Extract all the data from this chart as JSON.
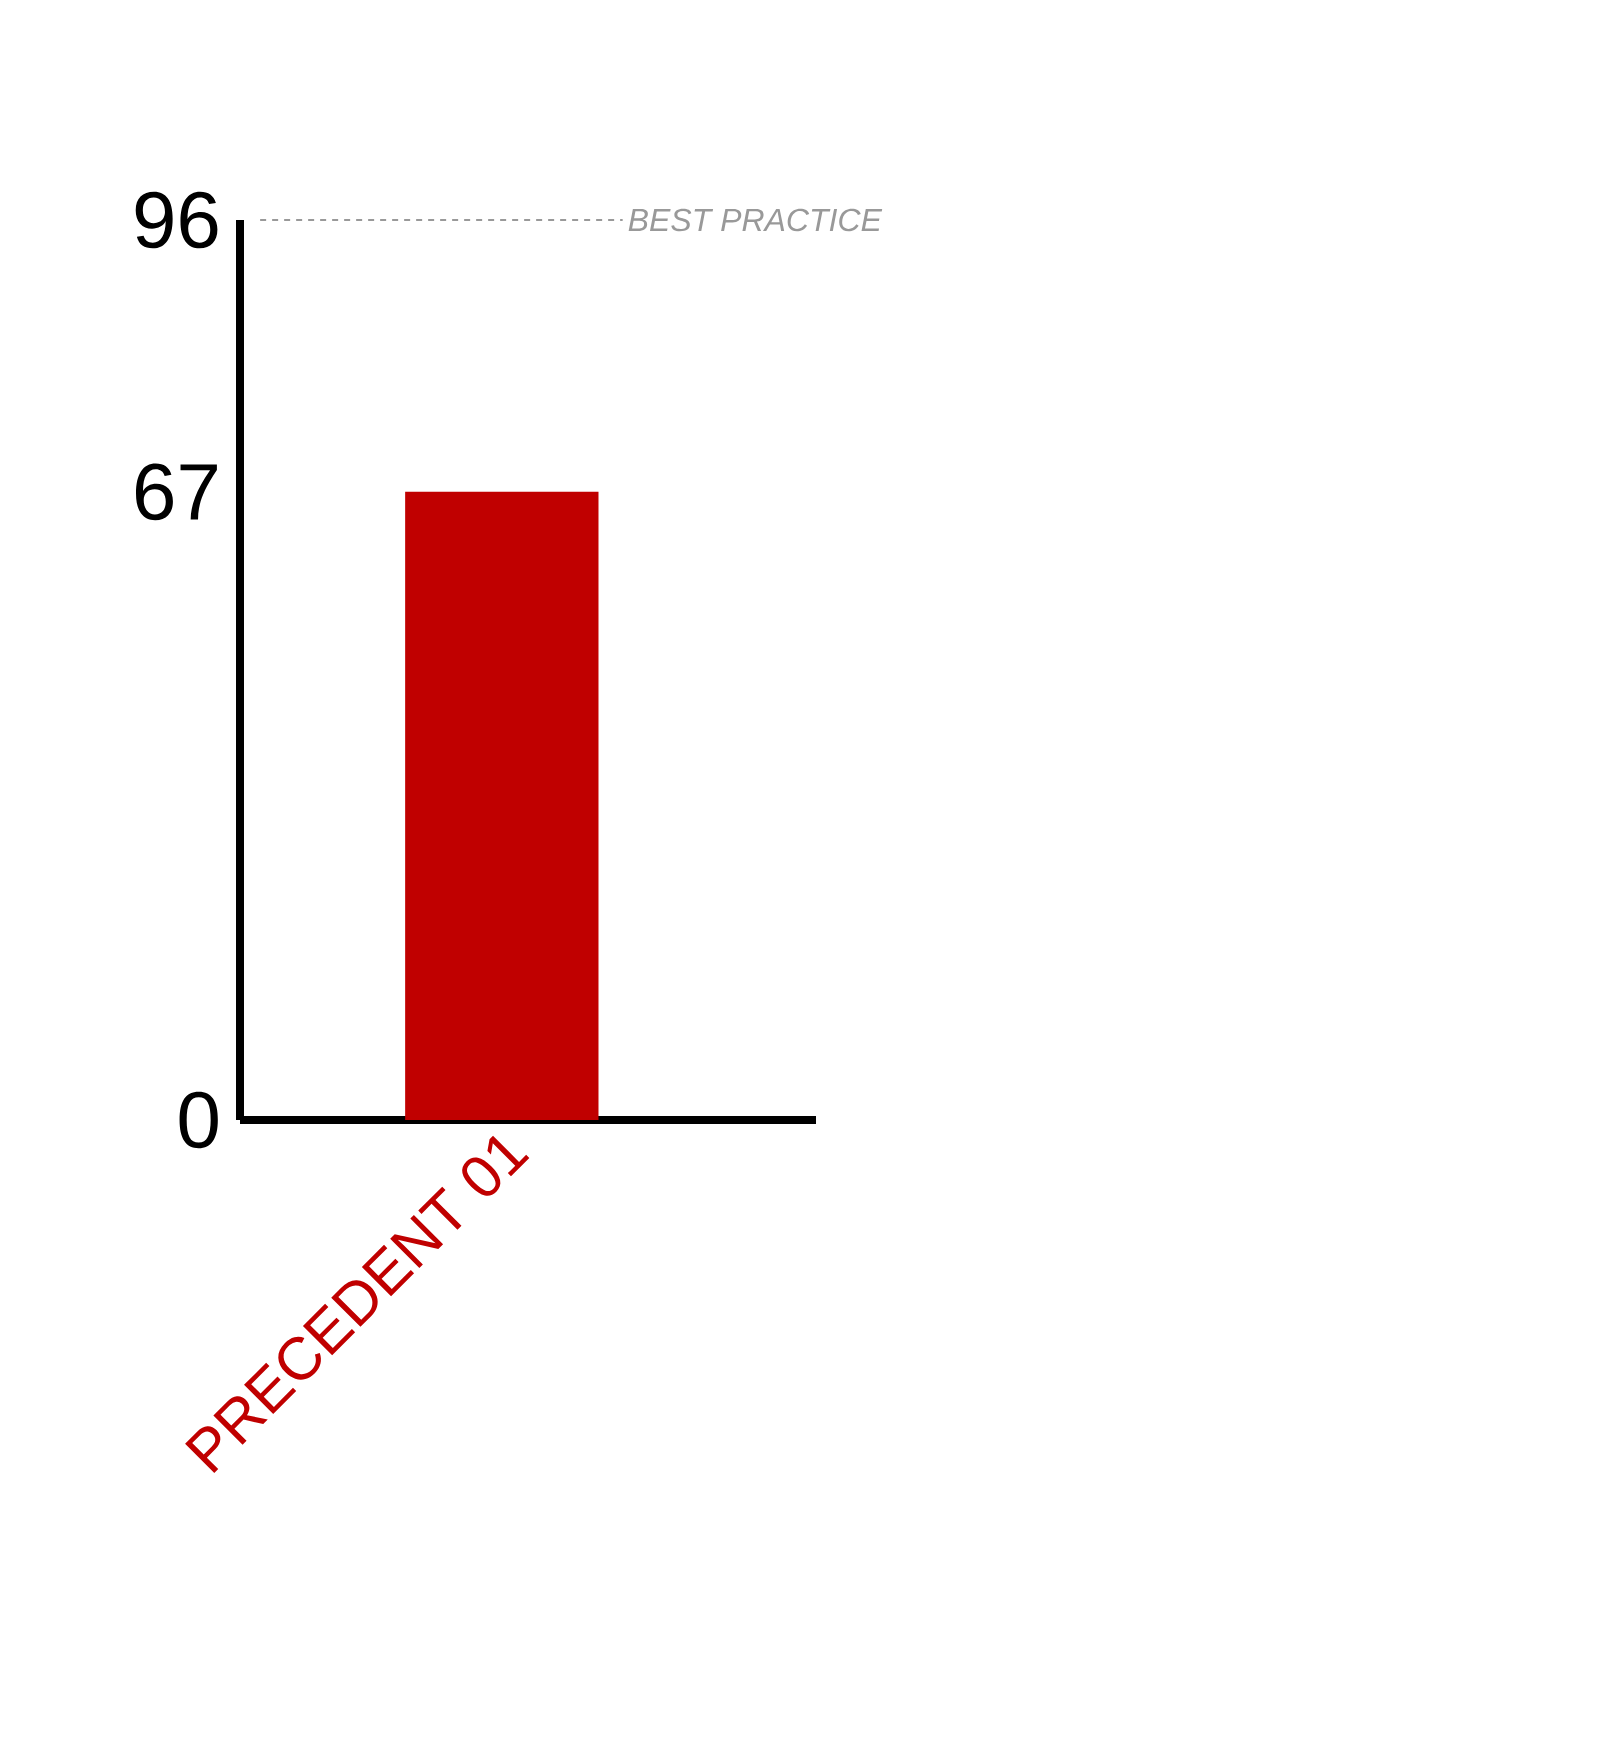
{
  "chart_data": {
    "type": "bar",
    "categories": [
      "PRECEDENT 01"
    ],
    "values": [
      67
    ],
    "color": "#c00000",
    "ylim": [
      0,
      96
    ],
    "yticks": [
      0,
      67,
      96
    ],
    "ref_lines": [
      {
        "axis": "y",
        "value": 96,
        "label": "BEST PRACTICE",
        "color": "#999999",
        "line_style": "dashed"
      }
    ]
  }
}
